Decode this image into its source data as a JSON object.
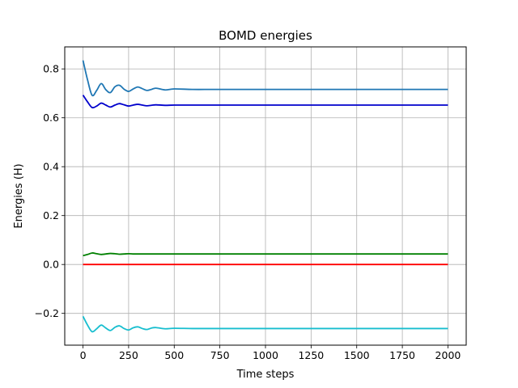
{
  "chart_data": {
    "type": "line",
    "title": "BOMD energies",
    "xlabel": "Time steps",
    "ylabel": "Energies (H)",
    "xlim": [
      -100,
      2100
    ],
    "ylim": [
      -0.33,
      0.89
    ],
    "grid": true,
    "legend": "none",
    "x_ticks": [
      0,
      250,
      500,
      750,
      1000,
      1250,
      1500,
      1750,
      2000
    ],
    "x_tick_labels": [
      "0",
      "250",
      "500",
      "750",
      "1000",
      "1250",
      "1500",
      "1750",
      "2000"
    ],
    "y_ticks": [
      -0.2,
      0.0,
      0.2,
      0.4,
      0.6,
      0.8
    ],
    "y_tick_labels": [
      "−0.2",
      "0.0",
      "0.2",
      "0.4",
      "0.6",
      "0.8"
    ],
    "x": [
      0,
      25,
      50,
      75,
      100,
      125,
      150,
      175,
      200,
      225,
      250,
      275,
      300,
      325,
      350,
      375,
      400,
      450,
      500,
      600,
      700,
      800,
      1000,
      1250,
      1500,
      1750,
      2000
    ],
    "series": [
      {
        "color": "#1f77b4",
        "values": [
          0.835,
          0.755,
          0.692,
          0.712,
          0.74,
          0.715,
          0.703,
          0.727,
          0.733,
          0.717,
          0.708,
          0.718,
          0.726,
          0.719,
          0.712,
          0.716,
          0.721,
          0.714,
          0.718,
          0.716,
          0.716,
          0.716,
          0.716,
          0.716,
          0.716,
          0.716,
          0.716
        ]
      },
      {
        "color": "#0000cc",
        "values": [
          0.693,
          0.665,
          0.642,
          0.648,
          0.66,
          0.652,
          0.644,
          0.652,
          0.658,
          0.653,
          0.648,
          0.652,
          0.655,
          0.652,
          0.649,
          0.651,
          0.653,
          0.651,
          0.652,
          0.652,
          0.652,
          0.652,
          0.652,
          0.652,
          0.652,
          0.652,
          0.652
        ]
      },
      {
        "color": "#008000",
        "values": [
          0.036,
          0.041,
          0.047,
          0.044,
          0.041,
          0.043,
          0.045,
          0.044,
          0.042,
          0.043,
          0.044,
          0.043,
          0.043,
          0.043,
          0.043,
          0.043,
          0.043,
          0.043,
          0.043,
          0.043,
          0.043,
          0.043,
          0.043,
          0.043,
          0.043,
          0.043,
          0.043
        ]
      },
      {
        "color": "#ff0000",
        "values": [
          0.0,
          0.0,
          0.0,
          0.0,
          0.0,
          0.0,
          0.0,
          0.0,
          0.0,
          0.0,
          0.0,
          0.0,
          0.0,
          0.0,
          0.0,
          0.0,
          0.0,
          0.0,
          0.0,
          0.0,
          0.0,
          0.0,
          0.0,
          0.0,
          0.0,
          0.0,
          0.0
        ]
      },
      {
        "color": "#17becf",
        "values": [
          -0.212,
          -0.248,
          -0.275,
          -0.263,
          -0.248,
          -0.26,
          -0.27,
          -0.257,
          -0.251,
          -0.262,
          -0.268,
          -0.259,
          -0.255,
          -0.262,
          -0.266,
          -0.26,
          -0.258,
          -0.263,
          -0.261,
          -0.262,
          -0.262,
          -0.262,
          -0.262,
          -0.262,
          -0.262,
          -0.262,
          -0.262
        ]
      }
    ]
  }
}
